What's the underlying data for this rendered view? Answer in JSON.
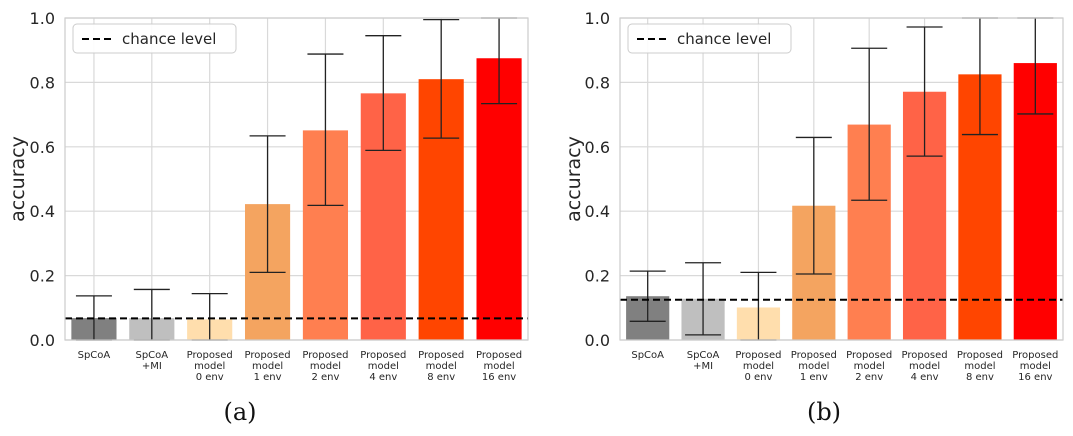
{
  "chart_data": [
    {
      "panel_label": "(a)",
      "type": "bar",
      "ylabel": "accuracy",
      "ylim": [
        0,
        1.0
      ],
      "yticks": [
        "0.0",
        "0.2",
        "0.4",
        "0.6",
        "0.8",
        "1.0"
      ],
      "grid": true,
      "legend": {
        "placement": "top-left",
        "entries": [
          "chance level"
        ]
      },
      "chance_level": 0.067,
      "categories": [
        "SpCoA",
        "SpCoA\n+MI",
        "Proposed\nmodel\n0 env",
        "Proposed\nmodel\n1 env",
        "Proposed\nmodel\n2 env",
        "Proposed\nmodel\n4 env",
        "Proposed\nmodel\n8 env",
        "Proposed\nmodel\n16 env"
      ],
      "values": [
        0.068,
        0.068,
        0.064,
        0.422,
        0.651,
        0.766,
        0.81,
        0.875
      ],
      "error_low": [
        0.0,
        0.0,
        0.0,
        0.21,
        0.418,
        0.589,
        0.627,
        0.734
      ],
      "error_high": [
        0.137,
        0.157,
        0.144,
        0.634,
        0.888,
        0.945,
        0.995,
        1.0
      ],
      "colors": [
        "#808080",
        "#bfbfbf",
        "#ffdead",
        "#f4a460",
        "#ff7f50",
        "#ff6347",
        "#ff4500",
        "#ff0000"
      ]
    },
    {
      "panel_label": "(b)",
      "type": "bar",
      "ylabel": "accuracy",
      "ylim": [
        0,
        1.0
      ],
      "yticks": [
        "0.0",
        "0.2",
        "0.4",
        "0.6",
        "0.8",
        "1.0"
      ],
      "grid": true,
      "legend": {
        "placement": "top-left",
        "entries": [
          "chance level"
        ]
      },
      "chance_level": 0.125,
      "categories": [
        "SpCoA",
        "SpCoA\n+MI",
        "Proposed\nmodel\n0 env",
        "Proposed\nmodel\n1 env",
        "Proposed\nmodel\n2 env",
        "Proposed\nmodel\n4 env",
        "Proposed\nmodel\n8 env",
        "Proposed\nmodel\n16 env"
      ],
      "values": [
        0.136,
        0.128,
        0.101,
        0.417,
        0.669,
        0.771,
        0.825,
        0.86
      ],
      "error_low": [
        0.058,
        0.016,
        0.0,
        0.205,
        0.434,
        0.571,
        0.638,
        0.702
      ],
      "error_high": [
        0.214,
        0.24,
        0.21,
        0.629,
        0.906,
        0.972,
        1.0,
        1.0
      ],
      "colors": [
        "#808080",
        "#bfbfbf",
        "#ffdead",
        "#f4a460",
        "#ff7f50",
        "#ff6347",
        "#ff4500",
        "#ff0000"
      ]
    }
  ]
}
